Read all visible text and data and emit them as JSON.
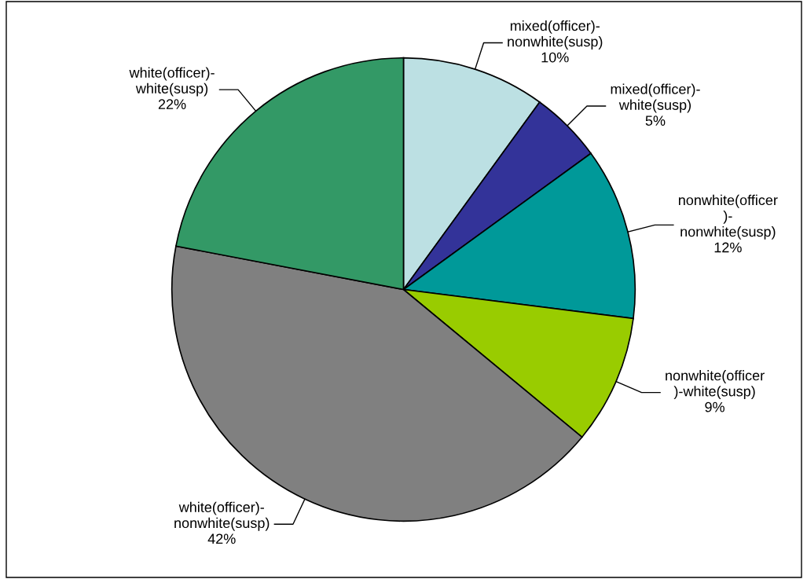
{
  "chart_data": {
    "type": "pie",
    "categories": [
      "mixed(officer)-\nnonwhite(susp)",
      "mixed(officer)-\nwhite(susp)",
      "nonwhite(officer\n)-\nnonwhite(susp)",
      "nonwhite(officer\n)-white(susp)",
      "white(officer)-\nnonwhite(susp)",
      "white(officer)-\nwhite(susp)"
    ],
    "values": [
      10,
      5,
      12,
      9,
      42,
      22
    ],
    "colors": [
      "#bce0e3",
      "#333399",
      "#009999",
      "#99cc00",
      "#808080",
      "#339966"
    ],
    "value_labels": [
      "10%",
      "5%",
      "12%",
      "9%",
      "42%",
      "22%"
    ],
    "legend": false
  }
}
